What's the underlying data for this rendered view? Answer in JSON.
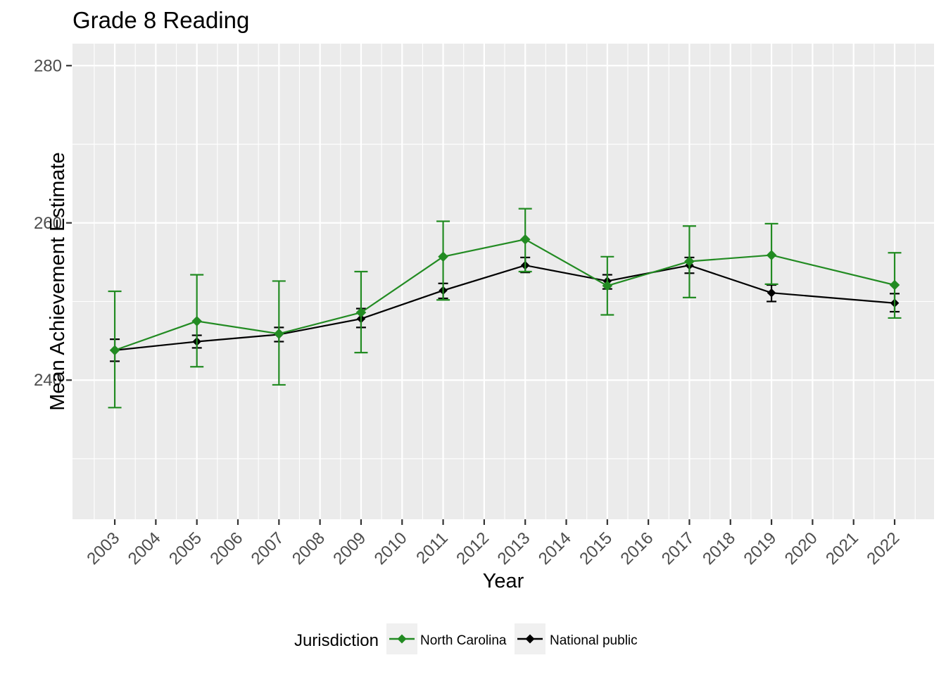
{
  "title": "Grade 8 Reading",
  "x_axis": {
    "title": "Year"
  },
  "y_axis": {
    "title": "Mean Achievement Estimate"
  },
  "legend": {
    "title": "Jurisdiction",
    "items": [
      {
        "label": "North Carolina",
        "color": "#228B22"
      },
      {
        "label": "National public",
        "color": "#000000"
      }
    ]
  },
  "colors": {
    "panel_background": "#EBEBEB",
    "gridline": "#FFFFFF",
    "tick_mark": "#333333",
    "tick_text": "#4D4D4D",
    "legend_key_background": "#F0F0F0",
    "north_carolina": "#228B22",
    "national_public": "#000000"
  },
  "chart_data": {
    "type": "line",
    "title": "Grade 8 Reading",
    "xlabel": "Year",
    "ylabel": "Mean Achievement Estimate",
    "legend_title": "Jurisdiction",
    "legend_position": "bottom",
    "grid": true,
    "point_shape": "diamond",
    "error_bars": true,
    "xlim": [
      2001.97,
      2022.96
    ],
    "ylim": [
      222.3,
      282.8
    ],
    "x_ticks": [
      2003,
      2004,
      2005,
      2006,
      2007,
      2008,
      2009,
      2010,
      2011,
      2012,
      2013,
      2014,
      2015,
      2016,
      2017,
      2018,
      2019,
      2020,
      2021,
      2022
    ],
    "y_ticks": [
      240,
      260,
      280
    ],
    "y_minor_gridlines": [
      230,
      250,
      270
    ],
    "series": [
      {
        "name": "North Carolina",
        "color": "#228B22",
        "x": [
          2003,
          2005,
          2007,
          2009,
          2011,
          2013,
          2015,
          2017,
          2019,
          2022
        ],
        "y": [
          243.8,
          247.5,
          245.9,
          248.6,
          255.7,
          257.9,
          252.0,
          255.1,
          255.9,
          252.1
        ],
        "ci_low": [
          236.5,
          241.7,
          239.4,
          243.5,
          250.2,
          253.8,
          248.3,
          250.5,
          252.2,
          247.9
        ],
        "ci_high": [
          251.3,
          253.4,
          252.6,
          253.8,
          260.2,
          261.8,
          255.7,
          259.6,
          259.9,
          256.2
        ]
      },
      {
        "name": "National public",
        "color": "#000000",
        "x": [
          2003,
          2005,
          2007,
          2009,
          2011,
          2013,
          2015,
          2017,
          2019,
          2022
        ],
        "y": [
          243.8,
          244.9,
          245.8,
          247.8,
          251.4,
          254.6,
          252.6,
          254.6,
          251.1,
          249.8
        ],
        "ci_low": [
          242.4,
          244.1,
          244.9,
          246.7,
          250.4,
          253.7,
          251.6,
          253.6,
          250.0,
          248.7
        ],
        "ci_high": [
          245.2,
          245.7,
          246.7,
          249.1,
          252.3,
          255.6,
          253.4,
          255.6,
          252.1,
          251.0
        ]
      }
    ]
  }
}
